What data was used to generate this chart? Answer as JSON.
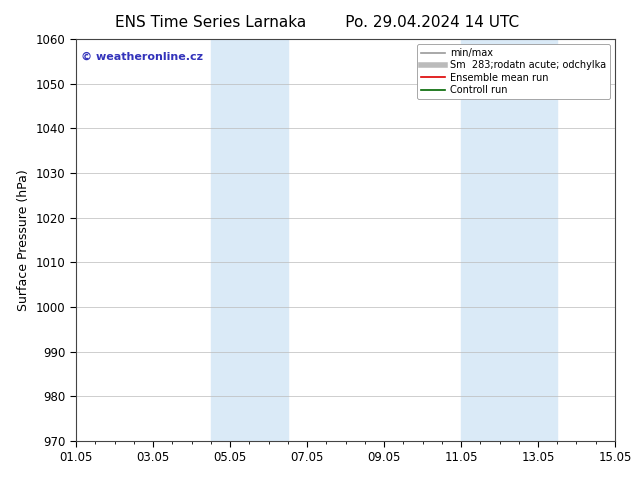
{
  "title_left": "ENS Time Series Larnaka",
  "title_right": "Po. 29.04.2024 14 UTC",
  "ylabel": "Surface Pressure (hPa)",
  "ylim": [
    970,
    1060
  ],
  "yticks": [
    970,
    980,
    990,
    1000,
    1010,
    1020,
    1030,
    1040,
    1050,
    1060
  ],
  "xlim": [
    0,
    14
  ],
  "xtick_labels": [
    "01.05",
    "03.05",
    "05.05",
    "07.05",
    "09.05",
    "11.05",
    "13.05",
    "15.05"
  ],
  "xtick_positions": [
    0,
    2,
    4,
    6,
    8,
    10,
    12,
    14
  ],
  "shaded_regions": [
    {
      "start": 3.5,
      "end": 5.5
    },
    {
      "start": 10.0,
      "end": 12.5
    }
  ],
  "shaded_color": "#daeaf7",
  "watermark_text": "© weatheronline.cz",
  "watermark_color": "#3333bb",
  "legend_entries": [
    {
      "label": "min/max",
      "color": "#999999",
      "linewidth": 1.2
    },
    {
      "label": "Sm  283;rodatn acute; odchylka",
      "color": "#bbbbbb",
      "linewidth": 4.0
    },
    {
      "label": "Ensemble mean run",
      "color": "#dd0000",
      "linewidth": 1.2
    },
    {
      "label": "Controll run",
      "color": "#006600",
      "linewidth": 1.2
    }
  ],
  "bg_color": "#ffffff",
  "plot_bg_color": "#ffffff",
  "grid_color": "#bbbbbb",
  "spine_color": "#444444",
  "title_fontsize": 11,
  "label_fontsize": 9,
  "tick_fontsize": 8.5,
  "watermark_fontsize": 8,
  "legend_fontsize": 7
}
